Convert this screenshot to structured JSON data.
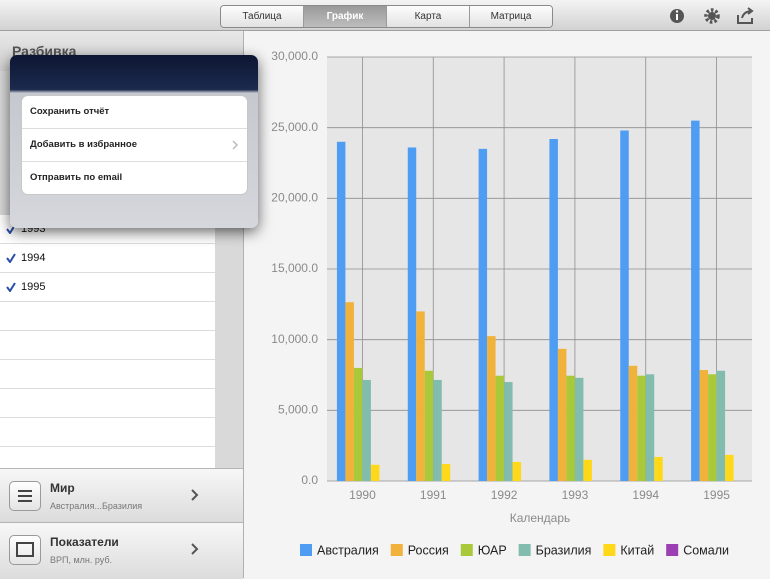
{
  "toolbar": {
    "tabs": [
      "Таблица",
      "График",
      "Карта",
      "Матрица"
    ],
    "selected_tab": "График"
  },
  "sidebar": {
    "header": "Разбивка",
    "items": [
      "1993",
      "1994",
      "1995"
    ],
    "buttons": [
      {
        "title": "Мир",
        "subtitle": "Австралия...Бразилия"
      },
      {
        "title": "Показатели",
        "subtitle": "ВРП, млн. руб."
      }
    ]
  },
  "popover": {
    "items": [
      "Сохранить отчёт",
      "Добавить в избранное",
      "Отправить по email"
    ]
  },
  "chart_data": {
    "type": "bar",
    "x_label": "Календарь",
    "categories": [
      "1990",
      "1991",
      "1992",
      "1993",
      "1994",
      "1995"
    ],
    "series": [
      {
        "name": "Австралия",
        "color": "#4f9cf3",
        "values": [
          24000,
          23600,
          23500,
          24200,
          24800,
          25500
        ]
      },
      {
        "name": "Россия",
        "color": "#f0b23a",
        "values": [
          12650,
          12000,
          10250,
          9350,
          8150,
          7850
        ]
      },
      {
        "name": "ЮАР",
        "color": "#a9c93a",
        "values": [
          8000,
          7800,
          7450,
          7450,
          7450,
          7550
        ]
      },
      {
        "name": "Бразилия",
        "color": "#82bcae",
        "values": [
          7150,
          7150,
          7000,
          7300,
          7550,
          7800
        ]
      },
      {
        "name": "Китай",
        "color": "#ffd81a",
        "values": [
          1150,
          1200,
          1350,
          1500,
          1700,
          1850
        ]
      },
      {
        "name": "Сомали",
        "color": "#9b3fb2",
        "values": [
          0,
          0,
          0,
          0,
          0,
          0
        ]
      }
    ],
    "ylim": [
      0,
      30000
    ],
    "yticks": [
      {
        "value": 0,
        "label": "0.0"
      },
      {
        "value": 5000,
        "label": "5,000.0"
      },
      {
        "value": 10000,
        "label": "10,000.0"
      },
      {
        "value": 15000,
        "label": "15,000.0"
      },
      {
        "value": 20000,
        "label": "20,000.0"
      },
      {
        "value": 25000,
        "label": "25,000.0"
      },
      {
        "value": 30000,
        "label": "30,000.0"
      }
    ],
    "grid": true,
    "legend": "bottom"
  }
}
